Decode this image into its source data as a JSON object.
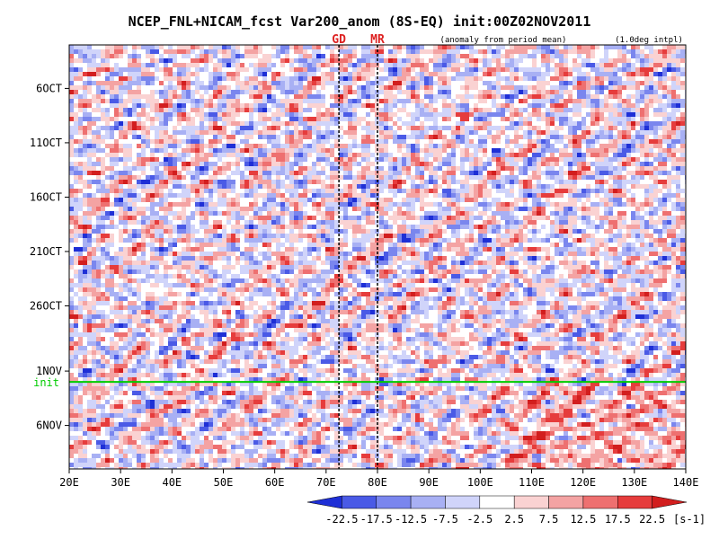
{
  "chart_data": {
    "type": "heatmap",
    "title": "NCEP_FNL+NICAM_fcst Var200_anom (8S-EQ) init:00Z02NOV2011",
    "subtitle_left": "(anomaly from period mean)",
    "subtitle_right": "(1.0deg intpl)",
    "xlim": [
      20,
      140
    ],
    "x_ticks": [
      {
        "value": 20,
        "label": "20E"
      },
      {
        "value": 30,
        "label": "30E"
      },
      {
        "value": 40,
        "label": "40E"
      },
      {
        "value": 50,
        "label": "50E"
      },
      {
        "value": 60,
        "label": "60E"
      },
      {
        "value": 70,
        "label": "70E"
      },
      {
        "value": 80,
        "label": "80E"
      },
      {
        "value": 90,
        "label": "90E"
      },
      {
        "value": 100,
        "label": "100E"
      },
      {
        "value": 110,
        "label": "110E"
      },
      {
        "value": 120,
        "label": "120E"
      },
      {
        "value": 130,
        "label": "130E"
      },
      {
        "value": 140,
        "label": "140E"
      }
    ],
    "ylim": [
      "2011-10-02",
      "2011-11-10"
    ],
    "y_ticks": [
      {
        "value": "2011-10-06",
        "label": "6OCT"
      },
      {
        "value": "2011-10-11",
        "label": "11OCT"
      },
      {
        "value": "2011-10-16",
        "label": "16OCT"
      },
      {
        "value": "2011-10-21",
        "label": "21OCT"
      },
      {
        "value": "2011-10-26",
        "label": "26OCT"
      },
      {
        "value": "2011-11-01",
        "label": "1NOV"
      },
      {
        "value": "2011-11-06",
        "label": "6NOV"
      }
    ],
    "init_line": {
      "date": "2011-11-02",
      "label": "init",
      "color": "#00cc00"
    },
    "markers": [
      {
        "label": "GD",
        "lon": 72.5,
        "color": "#dd2222"
      },
      {
        "label": "MR",
        "lon": 80,
        "color": "#dd2222"
      }
    ],
    "colorbar": {
      "unit": "[s-1]",
      "levels": [
        -22.5,
        -17.5,
        -12.5,
        -7.5,
        -2.5,
        2.5,
        7.5,
        12.5,
        17.5,
        22.5
      ],
      "tick_labels": [
        "-22.5",
        "-17.5",
        "-12.5",
        "-7.5",
        "-2.5",
        "2.5",
        "7.5",
        "12.5",
        "17.5",
        "22.5"
      ],
      "colors": [
        "#1e2fd6",
        "#4a5ae6",
        "#7a86ee",
        "#a8b0f4",
        "#d0d4fa",
        "#ffffff",
        "#fad2d2",
        "#f4a3a3",
        "#ee7070",
        "#e63c3c",
        "#d21e1e"
      ]
    }
  }
}
